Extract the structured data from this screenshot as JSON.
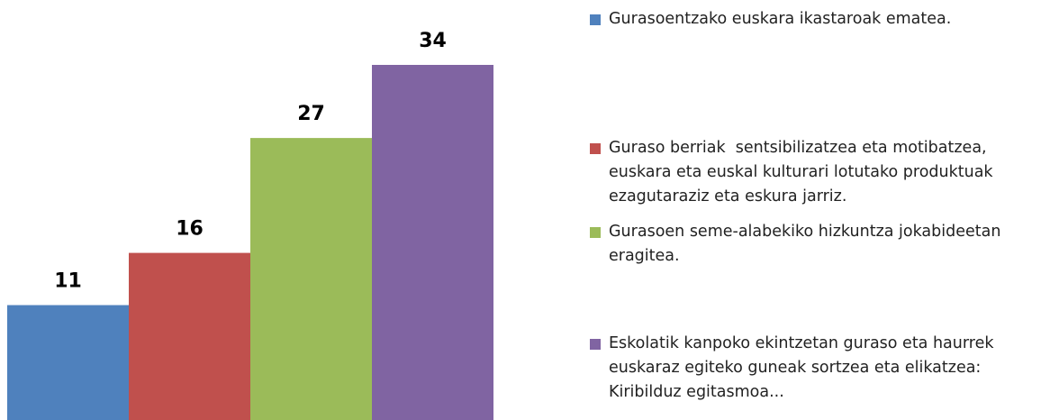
{
  "chart_data": {
    "type": "bar",
    "categories": [
      "Gurasoentzako euskara ikastaroak ematea.",
      "Guraso berriak  sentsibilizatzea eta motibatzea, euskara eta euskal kulturari lotutako produktuak ezagutaraziz eta eskura jarriz.",
      "Gurasoen seme-alabekiko hizkuntza jokabideetan eragitea.",
      "Eskolatik kanpoko ekintzetan guraso eta haurrek euskaraz egiteko guneak sortzea eta elikatzea: Kiribilduz egitasmoa..."
    ],
    "values": [
      11,
      16,
      27,
      34
    ],
    "colors": [
      "#4f81bd",
      "#c0504d",
      "#9bbb59",
      "#8064a2"
    ]
  }
}
